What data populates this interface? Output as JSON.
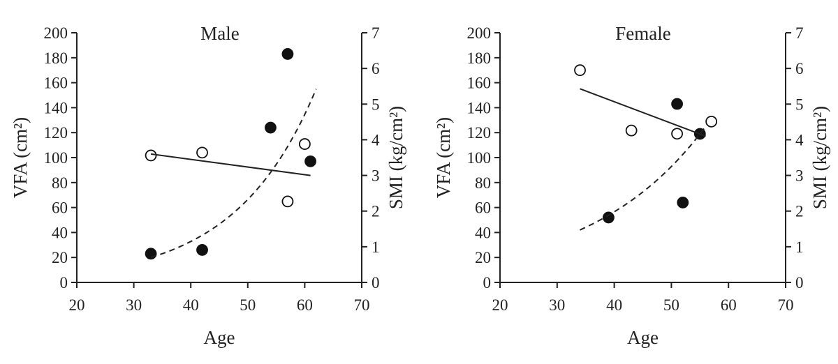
{
  "figure": {
    "colors": {
      "axis": "#222222",
      "filled_marker": "#111111",
      "open_marker_fill": "#ffffff",
      "background": "#ffffff"
    }
  },
  "chart_data": [
    {
      "type": "scatter",
      "title": "Male",
      "xlabel": "Age",
      "ylabel": "VFA (cm²)",
      "y2label": "SMI (kg/cm²)",
      "xlim": [
        20,
        70
      ],
      "ylim": [
        0,
        200
      ],
      "y2lim": [
        0,
        7
      ],
      "x_ticks": [
        "20",
        "30",
        "40",
        "50",
        "60",
        "70"
      ],
      "y_ticks": [
        "0",
        "20",
        "40",
        "60",
        "80",
        "100",
        "120",
        "140",
        "160",
        "180",
        "200"
      ],
      "y2_ticks": [
        "0",
        "1",
        "2",
        "3",
        "4",
        "5",
        "6",
        "7"
      ],
      "grid": false,
      "series": [
        {
          "marker": "filled circle",
          "axis": "left",
          "x": [
            33,
            42,
            54,
            57,
            61
          ],
          "y": [
            23,
            26,
            124,
            183,
            97
          ]
        },
        {
          "marker": "open circle",
          "axis": "right",
          "x": [
            33,
            42,
            57,
            60
          ],
          "y": [
            3.56,
            3.64,
            2.27,
            3.88
          ]
        },
        {
          "line": "dashed",
          "fit": "exponential",
          "axis": "left",
          "x": [
            33,
            62
          ],
          "y": [
            20,
            155
          ]
        },
        {
          "line": "solid",
          "fit": "linear",
          "axis": "right",
          "x": [
            33,
            61
          ],
          "y": [
            3.6,
            3.0
          ]
        }
      ]
    },
    {
      "type": "scatter",
      "title": "Female",
      "xlabel": "Age",
      "ylabel": "VFA (cm²)",
      "y2label": "SMI (kg/cm²)",
      "xlim": [
        20,
        70
      ],
      "ylim": [
        0,
        200
      ],
      "y2lim": [
        0,
        7
      ],
      "x_ticks": [
        "20",
        "30",
        "40",
        "50",
        "60",
        "70"
      ],
      "y_ticks": [
        "0",
        "20",
        "40",
        "60",
        "80",
        "100",
        "120",
        "140",
        "160",
        "180",
        "200"
      ],
      "y2_ticks": [
        "0",
        "1",
        "2",
        "3",
        "4",
        "5",
        "6",
        "7"
      ],
      "grid": false,
      "series": [
        {
          "marker": "filled circle",
          "axis": "left",
          "x": [
            39,
            51,
            52,
            55
          ],
          "y": [
            52,
            143,
            64,
            119
          ]
        },
        {
          "marker": "open circle",
          "axis": "right",
          "x": [
            34,
            43,
            51,
            57
          ],
          "y": [
            5.95,
            4.26,
            4.17,
            4.51
          ]
        },
        {
          "line": "dashed",
          "fit": "exponential",
          "axis": "left",
          "x": [
            34,
            56
          ],
          "y": [
            42,
            125
          ]
        },
        {
          "line": "solid",
          "fit": "linear",
          "axis": "right",
          "x": [
            34,
            56
          ],
          "y": [
            5.43,
            4.1
          ]
        }
      ]
    }
  ]
}
